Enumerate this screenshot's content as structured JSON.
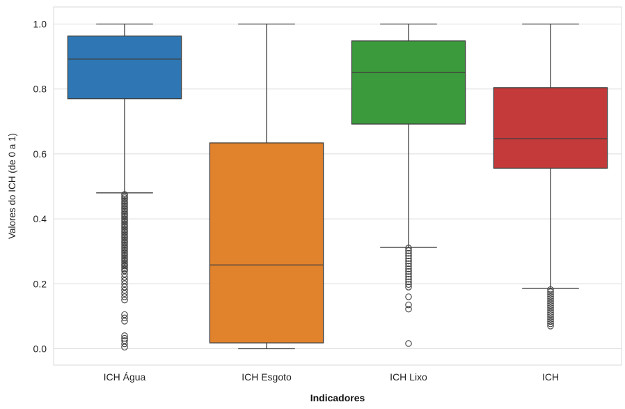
{
  "chart_data": {
    "type": "box",
    "xlabel": "Indicadores",
    "ylabel": "Valores do ICH (de 0 a 1)",
    "ylim": [
      -0.05,
      1.05
    ],
    "yticks": [
      0.0,
      0.2,
      0.4,
      0.6,
      0.8,
      1.0
    ],
    "ytick_labels": [
      "0.0",
      "0.2",
      "0.4",
      "0.6",
      "0.8",
      "1.0"
    ],
    "grid": true,
    "categories": [
      "ICH Água",
      "ICH Esgoto",
      "ICH Lixo",
      "ICH"
    ],
    "boxes": [
      {
        "category": "ICH Água",
        "color": "#2e77b4",
        "whisker_low": 0.48,
        "q1": 0.77,
        "median": 0.892,
        "q3": 0.963,
        "whisker_high": 1.0,
        "outliers": [
          0.475,
          0.47,
          0.465,
          0.46,
          0.455,
          0.45,
          0.445,
          0.44,
          0.435,
          0.43,
          0.425,
          0.42,
          0.415,
          0.41,
          0.405,
          0.4,
          0.395,
          0.39,
          0.385,
          0.38,
          0.375,
          0.37,
          0.365,
          0.36,
          0.355,
          0.35,
          0.345,
          0.34,
          0.335,
          0.33,
          0.325,
          0.32,
          0.315,
          0.31,
          0.305,
          0.3,
          0.295,
          0.29,
          0.285,
          0.28,
          0.275,
          0.27,
          0.265,
          0.26,
          0.255,
          0.25,
          0.245,
          0.24,
          0.23,
          0.22,
          0.21,
          0.2,
          0.19,
          0.18,
          0.17,
          0.16,
          0.15,
          0.105,
          0.095,
          0.085,
          0.04,
          0.032,
          0.025,
          0.015,
          0.005
        ]
      },
      {
        "category": "ICH Esgoto",
        "color": "#e1822c",
        "whisker_low": 0.0,
        "q1": 0.018,
        "median": 0.258,
        "q3": 0.634,
        "whisker_high": 1.0,
        "outliers": []
      },
      {
        "category": "ICH Lixo",
        "color": "#3b9a3b",
        "whisker_low": 0.312,
        "q1": 0.692,
        "median": 0.851,
        "q3": 0.948,
        "whisker_high": 1.0,
        "outliers": [
          0.31,
          0.302,
          0.294,
          0.286,
          0.278,
          0.27,
          0.262,
          0.254,
          0.246,
          0.238,
          0.23,
          0.222,
          0.214,
          0.206,
          0.198,
          0.19,
          0.16,
          0.135,
          0.122,
          0.016
        ]
      },
      {
        "category": "ICH",
        "color": "#c43a3a",
        "whisker_low": 0.186,
        "q1": 0.556,
        "median": 0.647,
        "q3": 0.804,
        "whisker_high": 1.0,
        "outliers": [
          0.182,
          0.175,
          0.168,
          0.161,
          0.154,
          0.147,
          0.14,
          0.133,
          0.126,
          0.119,
          0.112,
          0.105,
          0.098,
          0.091,
          0.084,
          0.077,
          0.07
        ]
      }
    ]
  }
}
